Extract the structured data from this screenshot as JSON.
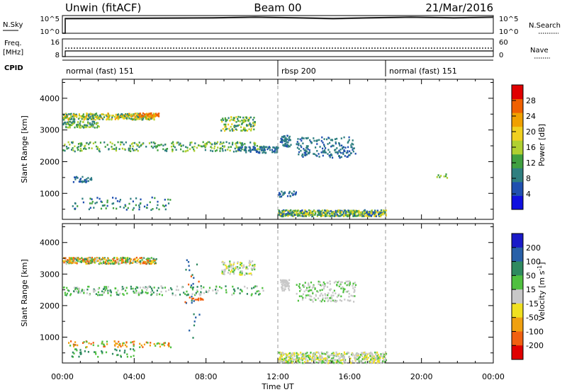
{
  "header": {
    "station": "Unwin (fitACF)",
    "beam": "Beam 00",
    "date": "21/Mar/2016"
  },
  "strip_labels": {
    "nsky": "N.Sky",
    "nsky_top": "10^5",
    "nsky_bottom": "10^0",
    "nsearch": "N.Search",
    "nsearch_top": "10^5",
    "nsearch_bottom": "10^0",
    "freq": "Freq.",
    "freq_unit": "[MHz]",
    "freq_top": "16",
    "freq_bottom": "8",
    "nave": "Nave",
    "nave_top": "60",
    "nave_bottom": "0",
    "cpid": "CPID"
  },
  "cpid_segments": [
    {
      "label": "normal (fast) 151",
      "start_hour": 0,
      "end_hour": 12
    },
    {
      "label": "rbsp 200",
      "start_hour": 12,
      "end_hour": 18
    },
    {
      "label": "normal (fast) 151",
      "start_hour": 18,
      "end_hour": 24
    }
  ],
  "axes": {
    "x_label": "Time UT",
    "x_ticks": [
      "00:00",
      "04:00",
      "08:00",
      "12:00",
      "16:00",
      "20:00",
      "00:00"
    ],
    "y_label": "Slant Range [km]",
    "y_ticks": [
      "1000",
      "2000",
      "3000",
      "4000"
    ]
  },
  "colorbars": {
    "power": {
      "label": "Power [dB]",
      "ticks": [
        "4",
        "8",
        "12",
        "16",
        "20",
        "24",
        "28"
      ],
      "colors": [
        "#1010e0",
        "#2050b0",
        "#2f7f80",
        "#40a040",
        "#b0d030",
        "#f0d020",
        "#f0a000",
        "#f06000",
        "#e00000"
      ]
    },
    "velocity": {
      "label_main": "Velocity [m s",
      "label_sup": "-1",
      "label_end": "]",
      "ticks": [
        "200",
        "100",
        "50",
        "15",
        "-15",
        "-50",
        "-100",
        "-200"
      ],
      "colors": [
        "#1a1ac8",
        "#2860a8",
        "#2f8a60",
        "#50c040",
        "#c8c8c8",
        "#f0e020",
        "#f0a010",
        "#f06010",
        "#e00000"
      ]
    }
  },
  "chart_data": [
    {
      "type": "heatmap",
      "name": "power",
      "x_range_hours": [
        0,
        24
      ],
      "y_range_km": [
        180,
        4600
      ],
      "blobs": [
        {
          "t0": 0.0,
          "t1": 5.2,
          "r0": 3350,
          "r1": 3550,
          "n": 320,
          "values": [
            6,
            10,
            14,
            18,
            22
          ]
        },
        {
          "t0": 4.2,
          "t1": 5.4,
          "r0": 3420,
          "r1": 3560,
          "n": 50,
          "values": [
            22,
            26,
            28
          ]
        },
        {
          "t0": 0.0,
          "t1": 2.0,
          "r0": 3100,
          "r1": 3300,
          "n": 90,
          "values": [
            6,
            10,
            14
          ]
        },
        {
          "t0": 8.8,
          "t1": 10.7,
          "r0": 3000,
          "r1": 3450,
          "n": 120,
          "values": [
            8,
            12,
            16,
            20
          ]
        },
        {
          "t0": 0.0,
          "t1": 11.2,
          "r0": 2350,
          "r1": 2650,
          "n": 260,
          "values": [
            8,
            12,
            16
          ]
        },
        {
          "t0": 9.5,
          "t1": 12.0,
          "r0": 2300,
          "r1": 2500,
          "n": 90,
          "values": [
            4,
            6,
            8
          ]
        },
        {
          "t0": 12.1,
          "t1": 12.7,
          "r0": 2500,
          "r1": 2850,
          "n": 50,
          "values": [
            4,
            6,
            8
          ]
        },
        {
          "t0": 13.0,
          "t1": 16.3,
          "r0": 2150,
          "r1": 2800,
          "n": 170,
          "values": [
            4,
            6,
            8
          ]
        },
        {
          "t0": 0.5,
          "t1": 1.6,
          "r0": 1350,
          "r1": 1550,
          "n": 30,
          "values": [
            4,
            8
          ]
        },
        {
          "t0": 0.4,
          "t1": 6.0,
          "r0": 500,
          "r1": 900,
          "n": 80,
          "values": [
            4,
            8,
            12
          ]
        },
        {
          "t0": 12.0,
          "t1": 18.0,
          "r0": 300,
          "r1": 500,
          "n": 480,
          "values": [
            4,
            8,
            12,
            16,
            20
          ]
        },
        {
          "t0": 12.0,
          "t1": 13.0,
          "r0": 900,
          "r1": 1100,
          "n": 30,
          "values": [
            4,
            8
          ]
        },
        {
          "t0": 20.8,
          "t1": 21.4,
          "r0": 1500,
          "r1": 1650,
          "n": 8,
          "values": [
            12,
            16
          ]
        }
      ]
    },
    {
      "type": "heatmap",
      "name": "velocity",
      "x_range_hours": [
        0,
        24
      ],
      "y_range_km": [
        180,
        4600
      ],
      "blobs": [
        {
          "t0": 0.0,
          "t1": 5.2,
          "r0": 3350,
          "r1": 3550,
          "n": 320,
          "values": [
            -200,
            -100,
            -50,
            0,
            50,
            100
          ]
        },
        {
          "t0": 8.8,
          "t1": 10.7,
          "r0": 3000,
          "r1": 3450,
          "n": 100,
          "values": [
            -50,
            -15,
            15,
            50
          ]
        },
        {
          "t0": 0.0,
          "t1": 11.2,
          "r0": 2350,
          "r1": 2650,
          "n": 220,
          "values": [
            15,
            50,
            100
          ]
        },
        {
          "t0": 7.2,
          "t1": 7.8,
          "r0": 2200,
          "r1": 2260,
          "n": 10,
          "values": [
            -200
          ]
        },
        {
          "t0": 12.1,
          "t1": 12.7,
          "r0": 2500,
          "r1": 2850,
          "n": 50,
          "values": [
            0,
            15
          ]
        },
        {
          "t0": 13.0,
          "t1": 16.3,
          "r0": 2150,
          "r1": 2800,
          "n": 170,
          "values": [
            0,
            15,
            50
          ]
        },
        {
          "t0": 0.3,
          "t1": 6.0,
          "r0": 700,
          "r1": 900,
          "n": 80,
          "values": [
            -200,
            -100,
            50
          ]
        },
        {
          "t0": 0.5,
          "t1": 4.0,
          "r0": 400,
          "r1": 650,
          "n": 40,
          "values": [
            50,
            100
          ]
        },
        {
          "t0": 12.0,
          "t1": 18.0,
          "r0": 200,
          "r1": 550,
          "n": 480,
          "values": [
            -50,
            -15,
            15,
            50
          ]
        },
        {
          "t0": 6.8,
          "t1": 7.6,
          "r0": 900,
          "r1": 3500,
          "n": 30,
          "values": [
            -200,
            100,
            200
          ]
        }
      ]
    }
  ]
}
